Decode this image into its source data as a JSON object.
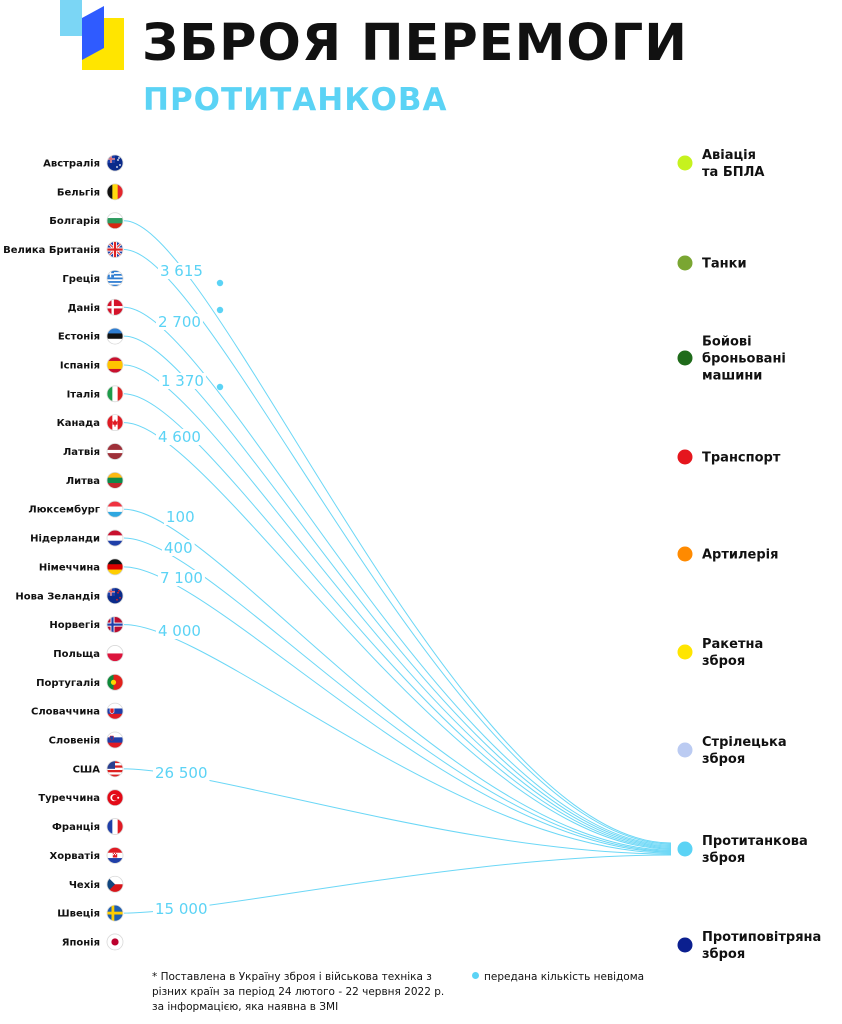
{
  "header": {
    "title": "ЗБРОЯ ПЕРЕМОГИ",
    "subtitle": "ПРОТИТАНКОВА"
  },
  "colors": {
    "accent": "#5BD3F5",
    "logo_yellow": "#FFE500",
    "logo_blue": "#2F5BFF",
    "logo_light_blue": "#7BD6F5"
  },
  "chart_data": {
    "type": "flow",
    "title": "ЗБРОЯ ПЕРЕМОГИ",
    "subtitle": "ПРОТИТАНКОВА",
    "countries": [
      {
        "name": "Австралія",
        "flag": "australia-flag"
      },
      {
        "name": "Бельгія",
        "flag": "belgium-flag"
      },
      {
        "name": "Болгарія",
        "flag": "bulgaria-flag"
      },
      {
        "name": "Велика Британія",
        "flag": "uk-flag"
      },
      {
        "name": "Греція",
        "flag": "greece-flag"
      },
      {
        "name": "Данія",
        "flag": "denmark-flag"
      },
      {
        "name": "Естонія",
        "flag": "estonia-flag"
      },
      {
        "name": "Іспанія",
        "flag": "spain-flag"
      },
      {
        "name": "Італія",
        "flag": "italy-flag"
      },
      {
        "name": "Канада",
        "flag": "canada-flag"
      },
      {
        "name": "Латвія",
        "flag": "latvia-flag"
      },
      {
        "name": "Литва",
        "flag": "lithuania-flag"
      },
      {
        "name": "Люксембург",
        "flag": "luxembourg-flag"
      },
      {
        "name": "Нідерланди",
        "flag": "netherlands-flag"
      },
      {
        "name": "Німеччина",
        "flag": "germany-flag"
      },
      {
        "name": "Нова Зеландія",
        "flag": "new-zealand-flag"
      },
      {
        "name": "Норвегія",
        "flag": "norway-flag"
      },
      {
        "name": "Польща",
        "flag": "poland-flag"
      },
      {
        "name": "Португалія",
        "flag": "portugal-flag"
      },
      {
        "name": "Словаччина",
        "flag": "slovakia-flag"
      },
      {
        "name": "Словенія",
        "flag": "slovenia-flag"
      },
      {
        "name": "США",
        "flag": "usa-flag"
      },
      {
        "name": "Туреччина",
        "flag": "turkey-flag"
      },
      {
        "name": "Франція",
        "flag": "france-flag"
      },
      {
        "name": "Хорватія",
        "flag": "croatia-flag"
      },
      {
        "name": "Чехія",
        "flag": "czechia-flag"
      },
      {
        "name": "Швеція",
        "flag": "sweden-flag"
      },
      {
        "name": "Японія",
        "flag": "japan-flag"
      }
    ],
    "categories": [
      {
        "label": "Авіація\nта БПЛА",
        "color": "#C6F21E"
      },
      {
        "label": "Танки",
        "color": "#7AA632"
      },
      {
        "label": "Бойові\nброньовані\nмашини",
        "color": "#1F6B1A"
      },
      {
        "label": "Транспорт",
        "color": "#E5161D"
      },
      {
        "label": "Артилерія",
        "color": "#FF8A00"
      },
      {
        "label": "Ракетна\nзброя",
        "color": "#FFE500"
      },
      {
        "label": "Стрілецька\nзброя",
        "color": "#BBCBF2"
      },
      {
        "label": "Протитанкова\nзброя",
        "color": "#5BD3F5",
        "highlighted": true
      },
      {
        "label": "Протиповітряна\nзброя",
        "color": "#0B1F8F"
      }
    ],
    "target_category": "Протитанкова\nзброя",
    "flows": [
      {
        "country": "Болгарія",
        "value": null,
        "unknown": true
      },
      {
        "country": "Велика Британія",
        "value": 3615,
        "label": "3 615"
      },
      {
        "country": "Данія",
        "value": null,
        "unknown": true
      },
      {
        "country": "Естонія",
        "value": 2700,
        "label": "2 700"
      },
      {
        "country": "Іспанія",
        "value": null,
        "unknown": true
      },
      {
        "country": "Італія",
        "value": 1370,
        "label": "1 370"
      },
      {
        "country": "Канада",
        "value": 4600,
        "label": "4 600"
      },
      {
        "country": "Люксембург",
        "value": 100,
        "label": "100"
      },
      {
        "country": "Нідерланди",
        "value": 400,
        "label": "400"
      },
      {
        "country": "Німеччина",
        "value": 7100,
        "label": "7 100"
      },
      {
        "country": "Норвегія",
        "value": 4000,
        "label": "4 000"
      },
      {
        "country": "США",
        "value": 26500,
        "label": "26 500"
      },
      {
        "country": "Швеція",
        "value": 15000,
        "label": "15 000"
      }
    ]
  },
  "footnote": {
    "main": "* Поставлена в Україну зброя і військова техніка з різних країн за період 24 лютого - 22 червня 2022 р. за інформацією, яка наявна в ЗМІ",
    "legend": "передана кількість невідома"
  }
}
